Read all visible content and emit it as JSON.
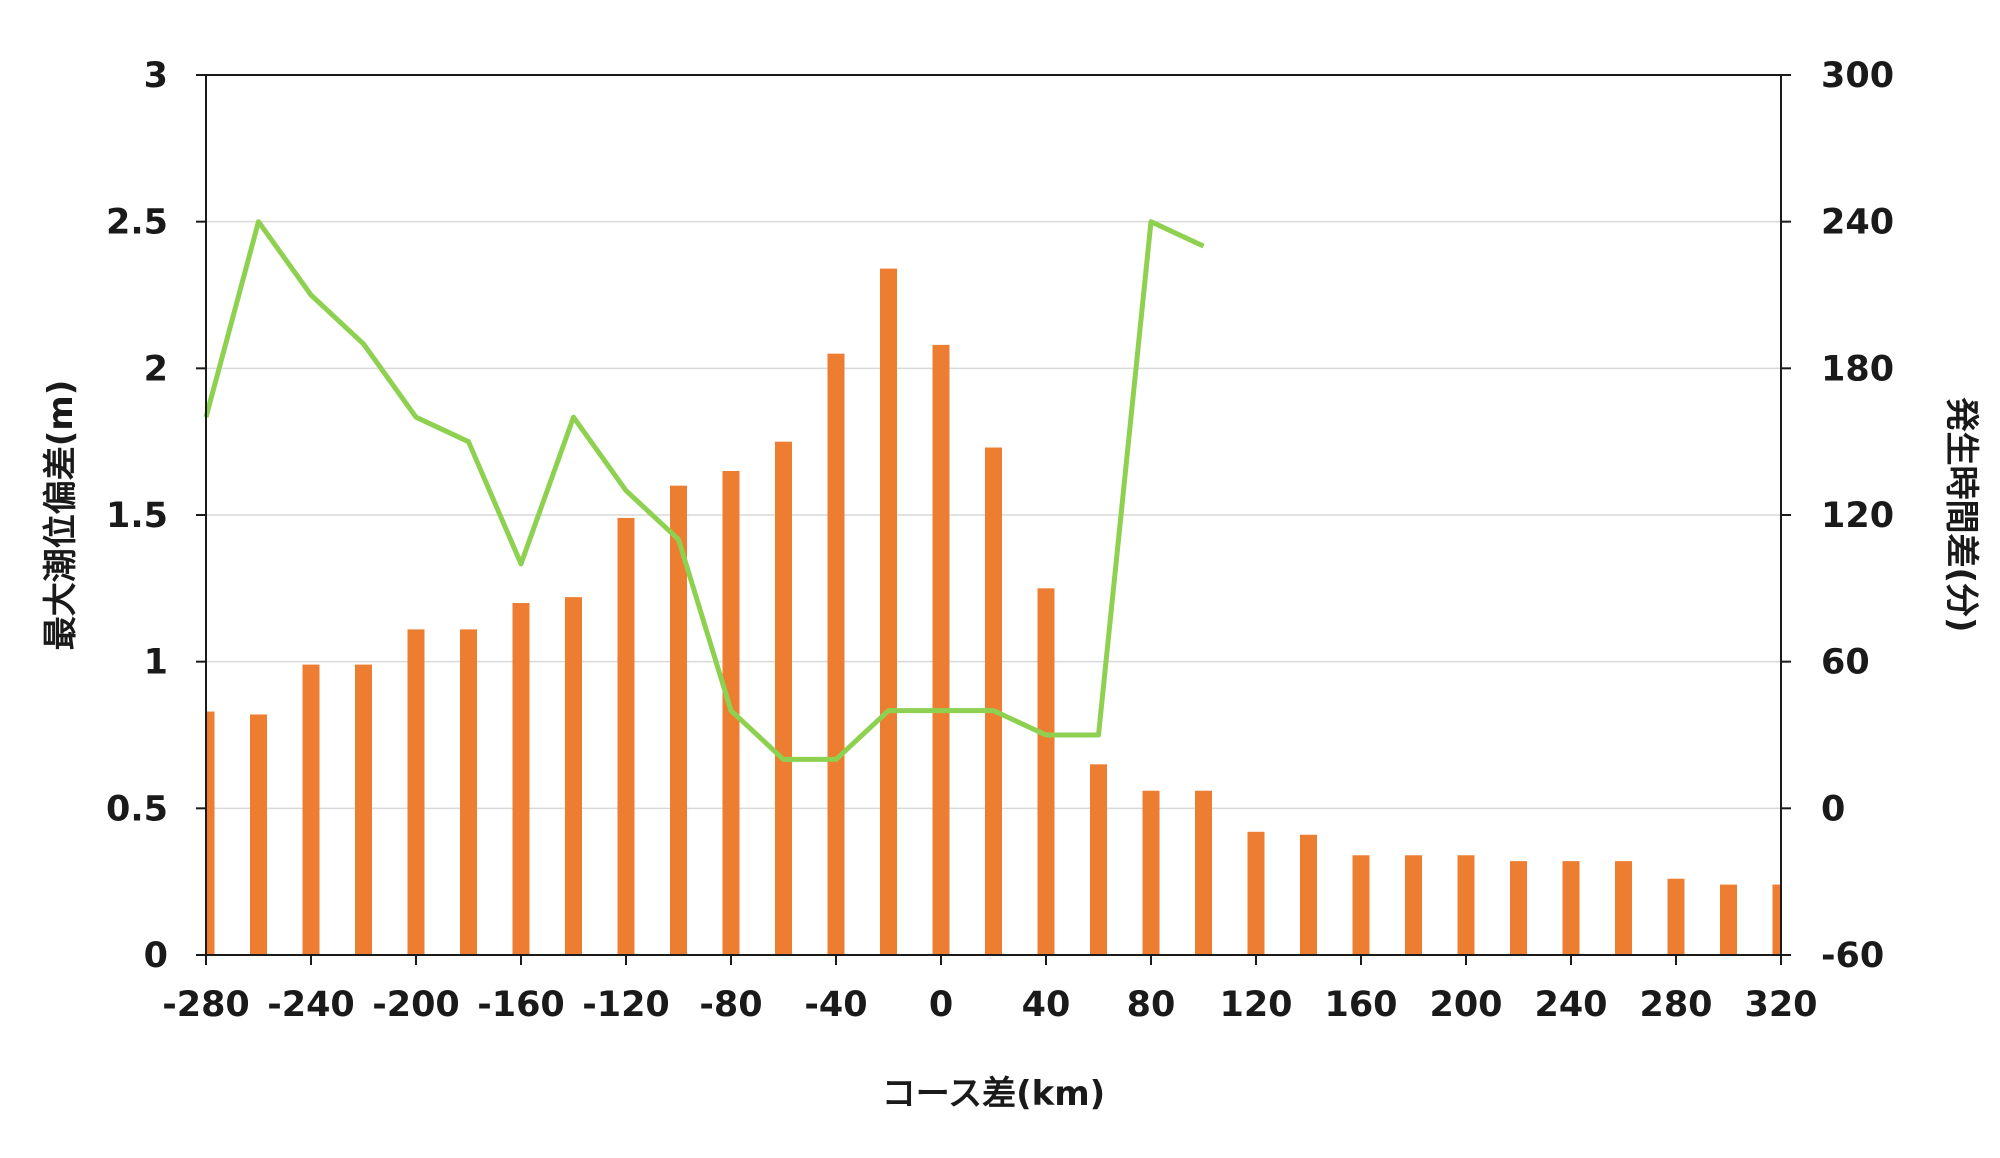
{
  "chart_data": {
    "type": "bar",
    "x_axis": {
      "label": "コース差(km)",
      "min": -280,
      "max": 320,
      "ticks": [
        "-280",
        "-240",
        "-200",
        "-160",
        "-120",
        "-80",
        "-40",
        "0",
        "40",
        "80",
        "120",
        "160",
        "200",
        "240",
        "280",
        "320"
      ]
    },
    "y_axis_left": {
      "label": "最大潮位偏差(m)",
      "min": 0,
      "max": 3,
      "ticks": [
        "0",
        "0.5",
        "1",
        "1.5",
        "2",
        "2.5",
        "3"
      ]
    },
    "y_axis_right": {
      "label": "発生時間差(分)",
      "min": -60,
      "max": 300,
      "ticks": [
        "-60",
        "0",
        "60",
        "120",
        "180",
        "240",
        "300"
      ]
    },
    "grid": true,
    "legend": "none",
    "colors": {
      "bars": "#ed7d31",
      "line": "#8ed150",
      "grid": "#d9d9d9",
      "axis": "#1a1a1a"
    },
    "series": [
      {
        "type": "bar",
        "axis": "left",
        "x": [
          -280,
          -260,
          -240,
          -220,
          -200,
          -180,
          -160,
          -140,
          -120,
          -100,
          -80,
          -60,
          -40,
          -20,
          0,
          20,
          40,
          60,
          80,
          100,
          120,
          140,
          160,
          180,
          200,
          220,
          240,
          260,
          280,
          300,
          320
        ],
        "values": [
          0.83,
          0.82,
          0.99,
          0.99,
          1.11,
          1.11,
          1.2,
          1.22,
          1.49,
          1.6,
          1.65,
          1.75,
          2.05,
          2.34,
          2.08,
          1.73,
          1.25,
          0.65,
          0.56,
          0.56,
          0.42,
          0.41,
          0.34,
          0.34,
          0.34,
          0.32,
          0.32,
          0.32,
          0.26,
          0.24,
          0.24
        ]
      },
      {
        "type": "line",
        "axis": "right",
        "x": [
          -280,
          -260,
          -240,
          -220,
          -200,
          -180,
          -160,
          -140,
          -120,
          -100,
          -80,
          -60,
          -40,
          -20,
          0,
          20,
          40,
          60,
          80,
          100
        ],
        "values": [
          160,
          240,
          210,
          190,
          160,
          150,
          100,
          160,
          130,
          110,
          40,
          20,
          20,
          40,
          40,
          40,
          30,
          30,
          240,
          230
        ]
      }
    ]
  }
}
